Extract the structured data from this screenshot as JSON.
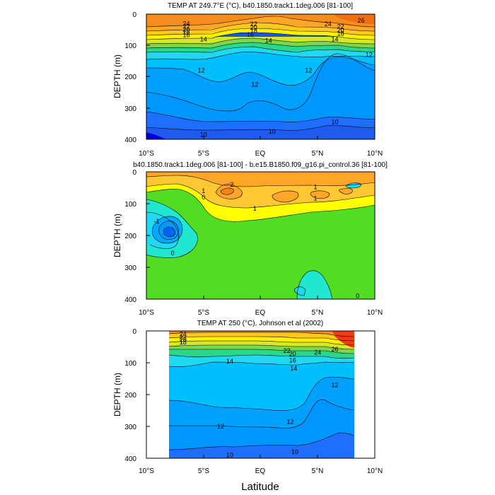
{
  "figure": {
    "xlabel": "Latitude"
  },
  "chart_data": [
    {
      "type": "contour",
      "title": "TEMP AT 249.7°E (°C), b40.1850.track1.1deg.006 [81-100]",
      "xlabel": "Latitude",
      "ylabel": "DEPTH (m)",
      "xlim": [
        -10,
        10
      ],
      "ylim": [
        400,
        0
      ],
      "x_tick_labels": [
        "10°S",
        "5°S",
        "EQ",
        "5°N",
        "10°N"
      ],
      "y_tick_labels": [
        "0",
        "100",
        "200",
        "300",
        "400"
      ],
      "contour_levels": [
        10,
        11,
        12,
        13,
        14,
        15,
        16,
        17,
        18,
        19,
        20,
        21,
        22,
        23,
        24,
        25,
        26
      ],
      "contour_labels": [
        {
          "text": "24",
          "x": -6.5,
          "y": 30
        },
        {
          "text": "22",
          "x": -6.5,
          "y": 40
        },
        {
          "text": "20",
          "x": -6.5,
          "y": 50
        },
        {
          "text": "18",
          "x": -6.5,
          "y": 58
        },
        {
          "text": "16",
          "x": -6.5,
          "y": 67
        },
        {
          "text": "14",
          "x": -5.0,
          "y": 80
        },
        {
          "text": "12",
          "x": -5.2,
          "y": 180
        },
        {
          "text": "22",
          "x": -0.6,
          "y": 32
        },
        {
          "text": "20",
          "x": -0.6,
          "y": 43
        },
        {
          "text": "18",
          "x": -0.6,
          "y": 53
        },
        {
          "text": "16",
          "x": -0.9,
          "y": 65
        },
        {
          "text": "14",
          "x": 0.7,
          "y": 85
        },
        {
          "text": "12",
          "x": -0.5,
          "y": 225
        },
        {
          "text": "12",
          "x": 4.2,
          "y": 180
        },
        {
          "text": "24",
          "x": 5.9,
          "y": 32
        },
        {
          "text": "22",
          "x": 7.0,
          "y": 40
        },
        {
          "text": "20",
          "x": 7.0,
          "y": 52
        },
        {
          "text": "18",
          "x": 7.0,
          "y": 62
        },
        {
          "text": "14",
          "x": 6.5,
          "y": 80
        },
        {
          "text": "26",
          "x": 8.8,
          "y": 20
        },
        {
          "text": "12",
          "x": 9.5,
          "y": 130
        },
        {
          "text": "10",
          "x": -5.0,
          "y": 385
        },
        {
          "text": "10",
          "x": 1.0,
          "y": 375
        },
        {
          "text": "10",
          "x": 6.5,
          "y": 345
        }
      ]
    },
    {
      "type": "contour",
      "title": "b40.1850.track1.1deg.006 [81-100] - b.e15.B1850.f09_g16.pi_control.36 [81-100]",
      "xlabel": "Latitude",
      "ylabel": "DEPTH (m)",
      "xlim": [
        -10,
        10
      ],
      "ylim": [
        400,
        0
      ],
      "x_tick_labels": [
        "10°S",
        "5°S",
        "EQ",
        "5°N",
        "10°N"
      ],
      "y_tick_labels": [
        "0",
        "100",
        "200",
        "300",
        "400"
      ],
      "contour_levels": [
        -3,
        -2,
        -1,
        0,
        1,
        2,
        3
      ],
      "contour_labels": [
        {
          "text": "2",
          "x": -2.5,
          "y": 40
        },
        {
          "text": "1",
          "x": -5.0,
          "y": 60
        },
        {
          "text": "0",
          "x": -5.0,
          "y": 80
        },
        {
          "text": "-1",
          "x": -9.1,
          "y": 155
        },
        {
          "text": "0",
          "x": -7.7,
          "y": 255
        },
        {
          "text": "1",
          "x": -0.5,
          "y": 115
        },
        {
          "text": "1",
          "x": 4.8,
          "y": 48
        },
        {
          "text": "1",
          "x": 4.8,
          "y": 83
        },
        {
          "text": "0",
          "x": 8.5,
          "y": 390
        }
      ]
    },
    {
      "type": "contour",
      "title": "TEMP AT 250 (°C), Johnson et al (2002)",
      "xlabel": "Latitude",
      "ylabel": "DEPTH (m)",
      "xlim": [
        -10,
        10
      ],
      "ylim": [
        400,
        0
      ],
      "x_tick_labels": [
        "10°S",
        "5°S",
        "EQ",
        "5°N",
        "10°N"
      ],
      "y_tick_labels": [
        "0",
        "100",
        "200",
        "300",
        "400"
      ],
      "data_xrange": [
        -8,
        8
      ],
      "contour_levels": [
        10,
        11,
        12,
        13,
        14,
        15,
        16,
        17,
        18,
        19,
        20,
        21,
        22,
        23,
        24,
        25,
        26
      ],
      "contour_labels": [
        {
          "text": "24",
          "x": -6.8,
          "y": 10
        },
        {
          "text": "22",
          "x": -6.8,
          "y": 20
        },
        {
          "text": "20",
          "x": -6.8,
          "y": 28
        },
        {
          "text": "18",
          "x": -6.8,
          "y": 36
        },
        {
          "text": "14",
          "x": -2.7,
          "y": 95
        },
        {
          "text": "12",
          "x": -3.5,
          "y": 300
        },
        {
          "text": "22",
          "x": 2.3,
          "y": 62
        },
        {
          "text": "20",
          "x": 2.8,
          "y": 72
        },
        {
          "text": "16",
          "x": 2.8,
          "y": 92
        },
        {
          "text": "24",
          "x": 5.0,
          "y": 68
        },
        {
          "text": "26",
          "x": 6.5,
          "y": 58
        },
        {
          "text": "14",
          "x": 2.9,
          "y": 118
        },
        {
          "text": "12",
          "x": 6.5,
          "y": 170
        },
        {
          "text": "12",
          "x": 2.6,
          "y": 285
        },
        {
          "text": "10",
          "x": -2.7,
          "y": 390
        },
        {
          "text": "10",
          "x": 3.0,
          "y": 380
        }
      ]
    }
  ]
}
